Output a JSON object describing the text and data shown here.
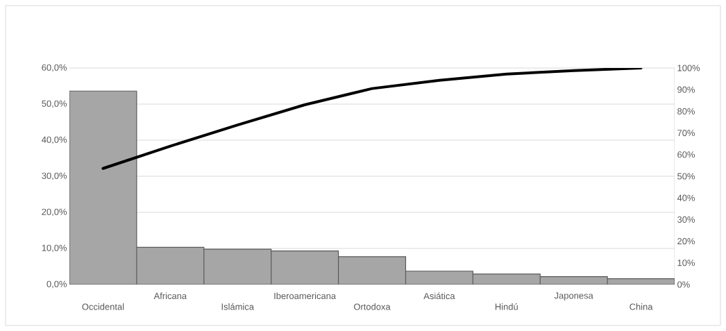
{
  "chart_data": {
    "type": "bar",
    "categories": [
      "Occidental",
      "Africana",
      "Islámica",
      "Iberoamericana",
      "Ortodoxa",
      "Asiática",
      "Hindú",
      "Japonesa",
      "China"
    ],
    "series": [
      {
        "color": "#a6a6a6",
        "values": [
          53.6,
          10.3,
          9.8,
          9.3,
          7.7,
          3.7,
          2.9,
          2.2,
          1.6
        ]
      },
      {
        "type": "line",
        "axis": "y2",
        "color": "#000000",
        "values": [
          53.6,
          63.9,
          73.7,
          83.0,
          90.5,
          94.3,
          97.2,
          98.8,
          100
        ]
      }
    ],
    "ylim": [
      0,
      60
    ],
    "yticks": [
      {
        "value": 0,
        "label": "0,0%"
      },
      {
        "value": 10,
        "label": "10,0%"
      },
      {
        "value": 20,
        "label": "20,0%"
      },
      {
        "value": 30,
        "label": "30,0%"
      },
      {
        "value": 40,
        "label": "40,0%"
      },
      {
        "value": 50,
        "label": "50,0%"
      },
      {
        "value": 60,
        "label": "60,0%"
      }
    ],
    "y2lim": [
      0,
      100
    ],
    "y2ticks": [
      {
        "value": 0,
        "label": "0%"
      },
      {
        "value": 10,
        "label": "10%"
      },
      {
        "value": 20,
        "label": "20%"
      },
      {
        "value": 30,
        "label": "30%"
      },
      {
        "value": 40,
        "label": "40%"
      },
      {
        "value": 50,
        "label": "50%"
      },
      {
        "value": 60,
        "label": "60%"
      },
      {
        "value": 70,
        "label": "70%"
      },
      {
        "value": 80,
        "label": "80%"
      },
      {
        "value": 90,
        "label": "90%"
      },
      {
        "value": 100,
        "label": "100%"
      }
    ],
    "grid": "y",
    "marker": "none",
    "line_style": "solid"
  }
}
